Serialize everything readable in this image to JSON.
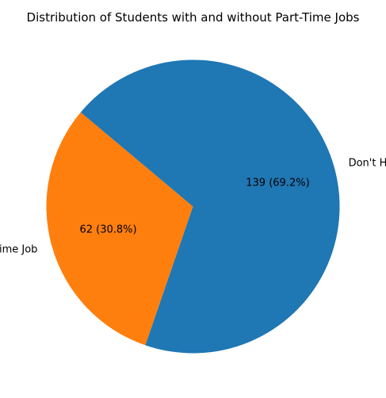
{
  "chart_data": {
    "type": "pie",
    "title": "Distribution of Students with and without Part-Time Jobs",
    "slices": [
      {
        "label": "Have Part-time Job",
        "value": 62,
        "percent": 30.8,
        "color": "#ff7f0e",
        "annotation": "62 (30.8%)"
      },
      {
        "label": "Don't Have Part-time Job",
        "value": 139,
        "percent": 69.2,
        "color": "#1f77b4",
        "annotation": "139 (69.2%)"
      }
    ],
    "start_angle_deg": 140,
    "direction": "counterclockwise",
    "legend": "none"
  }
}
